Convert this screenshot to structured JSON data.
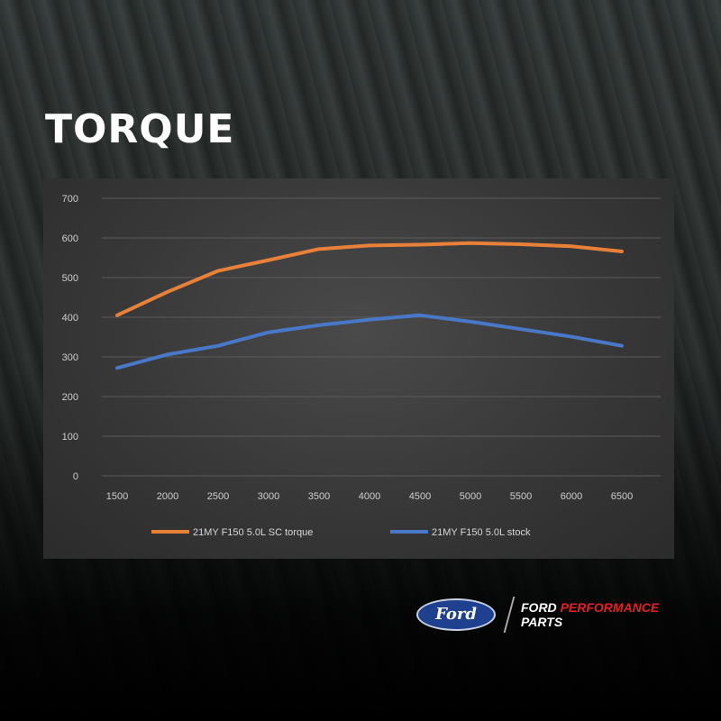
{
  "title": "TORQUE",
  "brand": {
    "oval_text": "Ford",
    "line1_a": "FORD",
    "line1_b": "PERFORMANCE",
    "line2": "PARTS"
  },
  "chart_data": {
    "type": "line",
    "title": "TORQUE",
    "x": [
      1500,
      2000,
      2500,
      3000,
      3500,
      4000,
      4500,
      5000,
      5500,
      6000,
      6500
    ],
    "ylim": [
      0,
      700
    ],
    "yticks": [
      0,
      100,
      200,
      300,
      400,
      500,
      600,
      700
    ],
    "grid": true,
    "legend": "bottom",
    "series": [
      {
        "name": "21MY F150 5.0L SC torque",
        "color": "#e8803a",
        "values": [
          405,
          464,
          517,
          544,
          572,
          581,
          583,
          587,
          584,
          579,
          566
        ]
      },
      {
        "name": "21MY F150 5.0L stock",
        "color": "#4a78c8",
        "values": [
          272,
          306,
          328,
          362,
          380,
          394,
          405,
          389,
          370,
          351,
          328
        ]
      }
    ]
  }
}
